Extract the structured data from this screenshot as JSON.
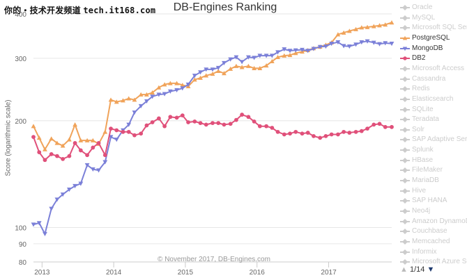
{
  "watermark": {
    "text": "你的・技术开发频道",
    "url": "tech.it168.com"
  },
  "colors": {
    "PostgreSQL": "#f0a35a",
    "MongoDB": "#7b80d8",
    "DB2": "#e0507a",
    "hidden": "#cccccc",
    "grid": "#e6e6e6",
    "axis": "#666666"
  },
  "legend": {
    "items": [
      {
        "name": "Oracle",
        "active": false
      },
      {
        "name": "MySQL",
        "active": false
      },
      {
        "name": "Microsoft SQL Server",
        "active": false
      },
      {
        "name": "PostgreSQL",
        "active": true
      },
      {
        "name": "MongoDB",
        "active": true
      },
      {
        "name": "DB2",
        "active": true
      },
      {
        "name": "Microsoft Access",
        "active": false
      },
      {
        "name": "Cassandra",
        "active": false
      },
      {
        "name": "Redis",
        "active": false
      },
      {
        "name": "Elasticsearch",
        "active": false
      },
      {
        "name": "SQLite",
        "active": false
      },
      {
        "name": "Teradata",
        "active": false
      },
      {
        "name": "Solr",
        "active": false
      },
      {
        "name": "SAP Adaptive Server",
        "active": false
      },
      {
        "name": "Splunk",
        "active": false
      },
      {
        "name": "HBase",
        "active": false
      },
      {
        "name": "FileMaker",
        "active": false
      },
      {
        "name": "MariaDB",
        "active": false
      },
      {
        "name": "Hive",
        "active": false
      },
      {
        "name": "SAP HANA",
        "active": false
      },
      {
        "name": "Neo4j",
        "active": false
      },
      {
        "name": "Amazon DynamoDB",
        "active": false
      },
      {
        "name": "Couchbase",
        "active": false
      },
      {
        "name": "Memcached",
        "active": false
      },
      {
        "name": "Informix",
        "active": false
      },
      {
        "name": "Microsoft Azure SQL Database",
        "active": false
      }
    ],
    "pager": {
      "text": "1/14"
    }
  },
  "chart_data": {
    "type": "line",
    "title": "DB-Engines Ranking",
    "ylabel": "Score (logarithmic scale)",
    "xlabel": "",
    "credits": "© November 2017, DB-Engines.com",
    "y_scale": "log",
    "ylim": [
      80,
      400
    ],
    "yticks": [
      80,
      90,
      100,
      200,
      300,
      400
    ],
    "xlim": [
      2012.88,
      2017.88
    ],
    "xticks": [
      2013,
      2014,
      2015,
      2016,
      2017
    ],
    "grid": true,
    "legend_position": "right",
    "x": [
      2012.88,
      2012.96,
      2013.04,
      2013.13,
      2013.21,
      2013.29,
      2013.38,
      2013.46,
      2013.54,
      2013.63,
      2013.71,
      2013.79,
      2013.88,
      2013.96,
      2014.04,
      2014.13,
      2014.21,
      2014.29,
      2014.38,
      2014.46,
      2014.54,
      2014.63,
      2014.71,
      2014.79,
      2014.88,
      2014.96,
      2015.04,
      2015.13,
      2015.21,
      2015.29,
      2015.38,
      2015.46,
      2015.54,
      2015.63,
      2015.71,
      2015.79,
      2015.88,
      2015.96,
      2016.04,
      2016.13,
      2016.21,
      2016.29,
      2016.38,
      2016.46,
      2016.54,
      2016.63,
      2016.71,
      2016.79,
      2016.88,
      2016.96,
      2017.04,
      2017.13,
      2017.21,
      2017.29,
      2017.38,
      2017.46,
      2017.54,
      2017.63,
      2017.71,
      2017.79,
      2017.88
    ],
    "series": [
      {
        "name": "PostgreSQL",
        "marker": "triangle",
        "values": [
          193,
          179,
          166,
          178,
          173,
          170,
          177,
          195,
          176,
          176,
          176,
          172,
          186,
          229,
          226,
          228,
          231,
          229,
          237,
          237,
          240,
          248,
          253,
          255,
          255,
          252,
          250,
          261,
          264,
          268,
          271,
          276,
          272,
          280,
          285,
          283,
          285,
          281,
          281,
          286,
          294,
          302,
          305,
          306,
          310,
          313,
          316,
          320,
          323,
          327,
          332,
          350,
          354,
          358,
          362,
          366,
          367,
          369,
          371,
          373,
          378
        ]
      },
      {
        "name": "MongoDB",
        "marker": "triangle-down",
        "values": [
          102,
          103,
          96,
          113,
          120,
          124,
          128,
          131,
          133,
          150,
          146,
          145,
          153,
          180,
          177,
          188,
          195,
          211,
          220,
          227,
          234,
          237,
          238,
          242,
          244,
          247,
          253,
          268,
          274,
          279,
          279,
          282,
          291,
          298,
          302,
          293,
          302,
          301,
          305,
          305,
          305,
          312,
          318,
          315,
          316,
          317,
          315,
          319,
          323,
          324,
          330,
          333,
          325,
          324,
          328,
          333,
          335,
          332,
          329,
          331,
          330
        ]
      },
      {
        "name": "DB2",
        "marker": "circle",
        "values": [
          180,
          163,
          155,
          161,
          159,
          156,
          159,
          173,
          165,
          160,
          168,
          173,
          160,
          190,
          188,
          186,
          186,
          182,
          184,
          194,
          198,
          203,
          193,
          205,
          204,
          207,
          198,
          199,
          197,
          195,
          197,
          197,
          195,
          196,
          201,
          208,
          205,
          199,
          193,
          193,
          191,
          186,
          183,
          184,
          186,
          184,
          185,
          181,
          179,
          181,
          183,
          183,
          186,
          185,
          186,
          187,
          190,
          195,
          196,
          192,
          192
        ]
      }
    ]
  }
}
